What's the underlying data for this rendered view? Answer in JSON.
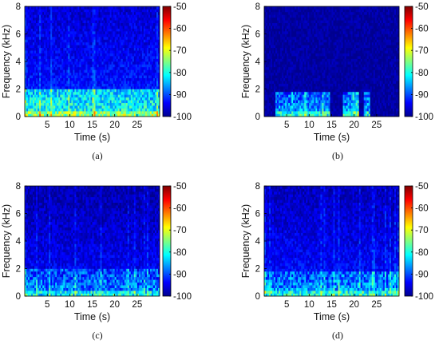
{
  "colorscale": {
    "min": -100,
    "max": -50,
    "ticks": [
      "-50",
      "-60",
      "-70",
      "-80",
      "-90",
      "-100"
    ],
    "stops": [
      "#00008f",
      "#0000ff",
      "#0080ff",
      "#00ffff",
      "#80ff80",
      "#ffff00",
      "#ff8000",
      "#ff0000",
      "#800000"
    ]
  },
  "chart_data": [
    {
      "type": "heatmap",
      "caption": "(a)",
      "xlabel": "Time (s)",
      "ylabel": "Frequency (kHz)",
      "xlim": [
        0,
        30
      ],
      "ylim": [
        0,
        8
      ],
      "xticks": [
        "5",
        "10",
        "15",
        "20",
        "25"
      ],
      "yticks": [
        "0",
        "2",
        "4",
        "6",
        "8"
      ],
      "clim": [
        -100,
        -50
      ],
      "active_segments_s": [
        [
          0,
          30
        ]
      ],
      "band_kHz": 2.0,
      "band_level_dB": -81,
      "floor_level_dB": -96
    },
    {
      "type": "heatmap",
      "caption": "(b)",
      "xlabel": "Time (s)",
      "ylabel": "Frequency (kHz)",
      "xlim": [
        0,
        30
      ],
      "ylim": [
        0,
        8
      ],
      "xticks": [
        "5",
        "10",
        "15",
        "20",
        "25"
      ],
      "yticks": [
        "0",
        "2",
        "4",
        "6",
        "8"
      ],
      "clim": [
        -100,
        -50
      ],
      "active_segments_s": [
        [
          2.5,
          14.5
        ],
        [
          17.5,
          21
        ],
        [
          22,
          23.5
        ]
      ],
      "band_kHz": 1.9,
      "band_level_dB": -87,
      "floor_level_dB": -99
    },
    {
      "type": "heatmap",
      "caption": "(c)",
      "xlabel": "Time (s)",
      "ylabel": "Frequency (kHz)",
      "xlim": [
        0,
        30
      ],
      "ylim": [
        0,
        8
      ],
      "xticks": [
        "5",
        "10",
        "15",
        "20",
        "25"
      ],
      "yticks": [
        "0",
        "2",
        "4",
        "6",
        "8"
      ],
      "clim": [
        -100,
        -50
      ],
      "active_segments_s": [
        [
          0,
          30
        ]
      ],
      "band_kHz": 2.0,
      "band_level_dB": -88,
      "floor_level_dB": -98
    },
    {
      "type": "heatmap",
      "caption": "(d)",
      "xlabel": "Time (s)",
      "ylabel": "Frequency (kHz)",
      "xlim": [
        0,
        30
      ],
      "ylim": [
        0,
        8
      ],
      "xticks": [
        "5",
        "10",
        "15",
        "20",
        "25"
      ],
      "yticks": [
        "0",
        "2",
        "4",
        "6",
        "8"
      ],
      "clim": [
        -100,
        -50
      ],
      "active_segments_s": [
        [
          0,
          30
        ]
      ],
      "band_kHz": 1.8,
      "band_level_dB": -87,
      "floor_level_dB": -97
    }
  ]
}
